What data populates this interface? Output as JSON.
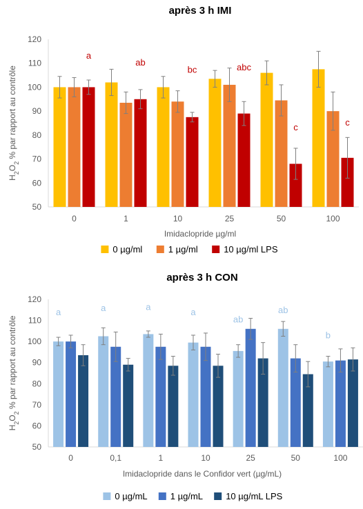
{
  "chart_data": [
    {
      "type": "bar",
      "title": "après 3 h IMI",
      "xlabel": "Imidaclopride µg/ml",
      "ylabel": "H2O2 % par rapport au contrôle",
      "ylabel_main": "H",
      "ylabel_sub1": "2",
      "ylabel_mid": "O",
      "ylabel_sub2": "2",
      "ylabel_rest": " % par rapport au contrôle",
      "ylim": [
        50,
        120
      ],
      "yticks": [
        50,
        60,
        70,
        80,
        90,
        100,
        110,
        120
      ],
      "grid": false,
      "legend_position": "bottom",
      "categories": [
        "0",
        "1",
        "10",
        "25",
        "50",
        "100"
      ],
      "series": [
        {
          "name": "0 µg/ml",
          "color": "#FFC000",
          "values": [
            100,
            102,
            100,
            103.5,
            106,
            107.5
          ],
          "errors": [
            4.5,
            5.5,
            4.5,
            3.5,
            5,
            7.5
          ]
        },
        {
          "name": "1 µg/ml",
          "color": "#ED7D31",
          "values": [
            100,
            93.5,
            94,
            101,
            94.5,
            90
          ],
          "errors": [
            4,
            4.5,
            4.5,
            7,
            6.5,
            8
          ]
        },
        {
          "name": "10 µg/ml LPS",
          "color": "#C00000",
          "values": [
            100,
            95,
            87.5,
            89,
            68,
            70.5
          ],
          "errors": [
            3,
            4,
            2,
            5,
            6.5,
            8.5
          ]
        }
      ],
      "annotations": [
        "a",
        "ab",
        "bc",
        "abc",
        "c",
        "c"
      ],
      "annotation_color": "#C00000",
      "annotation_values": [
        112,
        109,
        106,
        107,
        82,
        84
      ]
    },
    {
      "type": "bar",
      "title": "après 3 h CON",
      "xlabel": "Imidaclopride dans le Confidor vert (µg/mL)",
      "ylabel": "H2O2 % par rapport au contrôle",
      "ylabel_main": "H",
      "ylabel_sub1": "2",
      "ylabel_mid": "O",
      "ylabel_sub2": "2",
      "ylabel_rest": " % par rapport au contrôle",
      "ylim": [
        50,
        120
      ],
      "yticks": [
        50,
        60,
        70,
        80,
        90,
        100,
        110,
        120
      ],
      "grid": false,
      "legend_position": "bottom",
      "categories": [
        "0",
        "0,1",
        "1",
        "10",
        "25",
        "50",
        "100"
      ],
      "series": [
        {
          "name": "0 µg/mL",
          "color": "#9DC3E6",
          "values": [
            100,
            102.5,
            103.5,
            99.5,
            95.5,
            106,
            90.5
          ],
          "errors": [
            2,
            4,
            1.5,
            3.5,
            3,
            3.5,
            2.5
          ]
        },
        {
          "name": "1 µg/mL",
          "color": "#4472C4",
          "values": [
            100,
            97.5,
            97.5,
            97.5,
            106,
            92,
            91
          ],
          "errors": [
            3,
            7,
            6,
            6.5,
            5,
            6.5,
            5.5
          ]
        },
        {
          "name": "10 µg/mL LPS",
          "color": "#1F4E79",
          "values": [
            93.5,
            89,
            88.5,
            88.5,
            92,
            84.5,
            91.5
          ],
          "errors": [
            5,
            3,
            4.5,
            5.5,
            7.5,
            6,
            5.5
          ]
        }
      ],
      "annotations": [
        "a",
        "a",
        "a",
        "a",
        "ab",
        "ab",
        "b"
      ],
      "annotation_color": "#9DC3E6",
      "annotation_values": [
        112.5,
        114.5,
        115,
        112.5,
        109,
        113.5,
        101.5
      ]
    }
  ]
}
